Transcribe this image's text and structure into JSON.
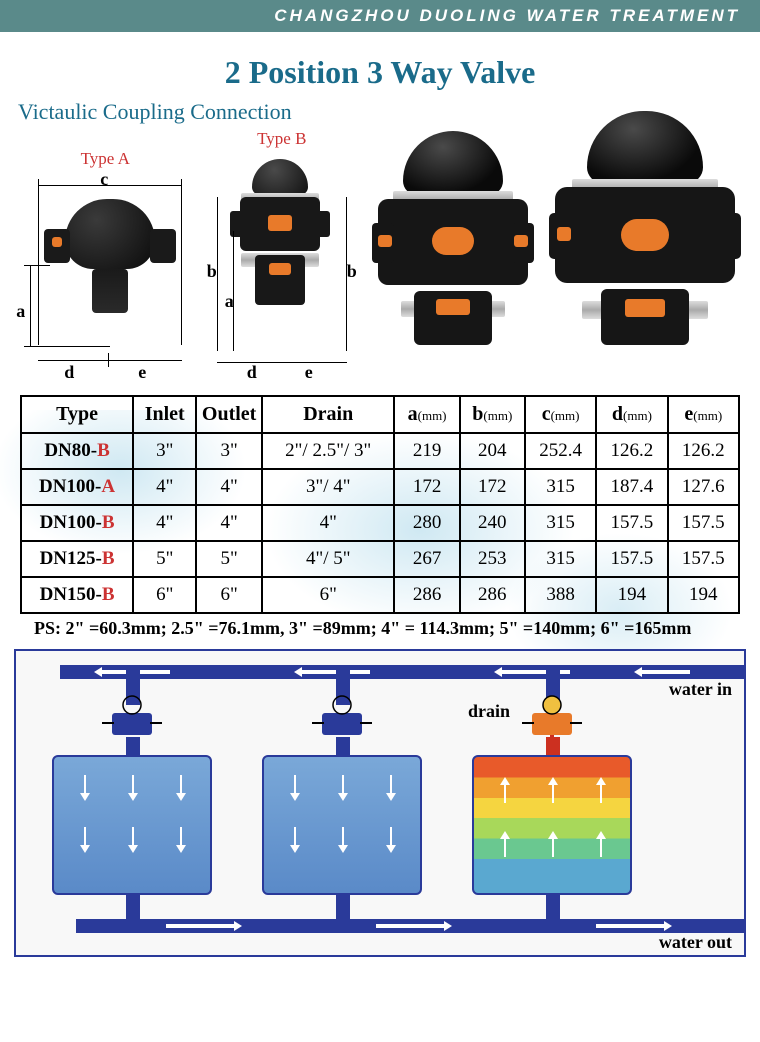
{
  "header": {
    "company": "CHANGZHOU DUOLING WATER TREATMENT"
  },
  "title": "2 Position 3 Way Valve",
  "subtitle": "Victaulic Coupling Connection",
  "types": {
    "a_label": "Type A",
    "b_label": "Type B"
  },
  "dims": {
    "a": "a",
    "b": "b",
    "c": "c",
    "d": "d",
    "e": "e"
  },
  "table": {
    "headers": {
      "type": "Type",
      "inlet": "Inlet",
      "outlet": "Outlet",
      "drain": "Drain",
      "a": "a",
      "b": "b",
      "c": "c",
      "d": "d",
      "e": "e",
      "unit": "(mm)"
    },
    "col_widths": [
      "110px",
      "62px",
      "64px",
      "130px",
      "64px",
      "64px",
      "70px",
      "70px",
      "70px"
    ],
    "rows": [
      {
        "type_base": "DN80-",
        "suffix": "B",
        "inlet": "3\"",
        "outlet": "3\"",
        "drain": "2\"/ 2.5\"/ 3\"",
        "a": "219",
        "b": "204",
        "c": "252.4",
        "d": "126.2",
        "e": "126.2"
      },
      {
        "type_base": "DN100-",
        "suffix": "A",
        "inlet": "4\"",
        "outlet": "4\"",
        "drain": "3\"/ 4\"",
        "a": "172",
        "b": "172",
        "c": "315",
        "d": "187.4",
        "e": "127.6"
      },
      {
        "type_base": "DN100-",
        "suffix": "B",
        "inlet": "4\"",
        "outlet": "4\"",
        "drain": "4\"",
        "a": "280",
        "b": "240",
        "c": "315",
        "d": "157.5",
        "e": "157.5"
      },
      {
        "type_base": "DN125-",
        "suffix": "B",
        "inlet": "5\"",
        "outlet": "5\"",
        "drain": "4\"/ 5\"",
        "a": "267",
        "b": "253",
        "c": "315",
        "d": "157.5",
        "e": "157.5"
      },
      {
        "type_base": "DN150-",
        "suffix": "B",
        "inlet": "6\"",
        "outlet": "6\"",
        "drain": "6\"",
        "a": "286",
        "b": "286",
        "c": "388",
        "d": "194",
        "e": "194"
      }
    ]
  },
  "ps_note": "PS: 2\" =60.3mm; 2.5\" =76.1mm, 3\" =89mm; 4\" = 114.3mm; 5\" =140mm; 6\" =165mm",
  "flow": {
    "water_in": "water in",
    "water_out": "water out",
    "drain": "drain"
  },
  "colors": {
    "header_bg": "#5a8a8a",
    "title": "#1a6b8a",
    "accent_red": "#cc3333",
    "pipe": "#2a3a9a",
    "orange": "#e87a2a"
  }
}
